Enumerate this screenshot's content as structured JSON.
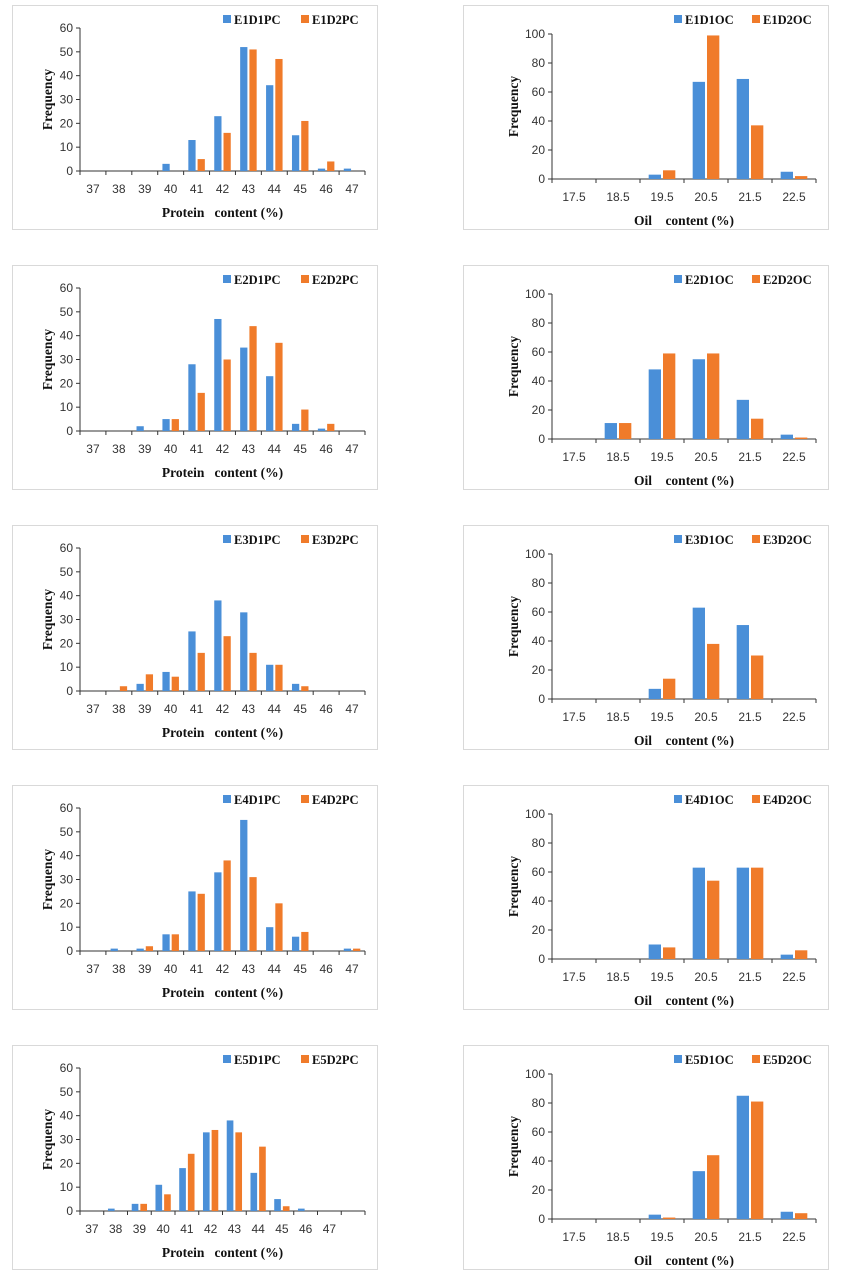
{
  "colors": {
    "d1": "#4a8fd8",
    "d2": "#f07b2a",
    "axis": "#333333"
  },
  "chart_data": [
    {
      "type": "bar",
      "ylabel": "Frequency",
      "xlabel": "Protein   content (%)",
      "ylim": [
        0,
        60
      ],
      "yticks": [
        0,
        10,
        20,
        30,
        40,
        50,
        60
      ],
      "legend": "top-right",
      "categories": [
        "37",
        "38",
        "39",
        "40",
        "41",
        "42",
        "43",
        "44",
        "45",
        "46",
        "47"
      ],
      "series": [
        {
          "name": "E1D1PC",
          "values": [
            0,
            0,
            0,
            3,
            13,
            23,
            52,
            36,
            15,
            1,
            1
          ]
        },
        {
          "name": "E1D2PC",
          "values": [
            0,
            0,
            0,
            0,
            5,
            16,
            51,
            47,
            21,
            4,
            0
          ]
        }
      ]
    },
    {
      "type": "bar",
      "ylabel": "Frequency",
      "xlabel": "Oil    content (%)",
      "ylim": [
        0,
        100
      ],
      "yticks": [
        0,
        20,
        40,
        60,
        80,
        100
      ],
      "legend": "top-right",
      "categories": [
        "17.5",
        "18.5",
        "19.5",
        "20.5",
        "21.5",
        "22.5"
      ],
      "series": [
        {
          "name": "E1D1OC",
          "values": [
            0,
            0,
            3,
            67,
            69,
            5
          ]
        },
        {
          "name": "E1D2OC",
          "values": [
            0,
            0,
            6,
            99,
            37,
            2
          ]
        }
      ]
    },
    {
      "type": "bar",
      "ylabel": "Frequency",
      "xlabel": "Protein   content (%)",
      "ylim": [
        0,
        60
      ],
      "yticks": [
        0,
        10,
        20,
        30,
        40,
        50,
        60
      ],
      "legend": "top-right",
      "categories": [
        "37",
        "38",
        "39",
        "40",
        "41",
        "42",
        "43",
        "44",
        "45",
        "46",
        "47"
      ],
      "series": [
        {
          "name": "E2D1PC",
          "values": [
            0,
            0,
            2,
            5,
            28,
            47,
            35,
            23,
            3,
            1,
            0
          ]
        },
        {
          "name": "E2D2PC",
          "values": [
            0,
            0,
            0,
            5,
            16,
            30,
            44,
            37,
            9,
            3,
            0
          ]
        }
      ]
    },
    {
      "type": "bar",
      "ylabel": "Frequency",
      "xlabel": "Oil    content (%)",
      "ylim": [
        0,
        100
      ],
      "yticks": [
        0,
        20,
        40,
        60,
        80,
        100
      ],
      "legend": "top-right",
      "categories": [
        "17.5",
        "18.5",
        "19.5",
        "20.5",
        "21.5",
        "22.5"
      ],
      "series": [
        {
          "name": "E2D1OC",
          "values": [
            0,
            11,
            48,
            55,
            27,
            3
          ]
        },
        {
          "name": "E2D2OC",
          "values": [
            0,
            11,
            59,
            59,
            14,
            1
          ]
        }
      ]
    },
    {
      "type": "bar",
      "ylabel": "Frequency",
      "xlabel": "Protein   content (%)",
      "ylim": [
        0,
        60
      ],
      "yticks": [
        0,
        10,
        20,
        30,
        40,
        50,
        60
      ],
      "legend": "top-right",
      "categories": [
        "37",
        "38",
        "39",
        "40",
        "41",
        "42",
        "43",
        "44",
        "45",
        "46",
        "47"
      ],
      "series": [
        {
          "name": "E3D1PC",
          "values": [
            0,
            0,
            3,
            8,
            25,
            38,
            33,
            11,
            3,
            0,
            0
          ]
        },
        {
          "name": "E3D2PC",
          "values": [
            0,
            2,
            7,
            6,
            16,
            23,
            16,
            11,
            2,
            0,
            0
          ]
        }
      ]
    },
    {
      "type": "bar",
      "ylabel": "Frequency",
      "xlabel": "Oil    content (%)",
      "ylim": [
        0,
        100
      ],
      "yticks": [
        0,
        20,
        40,
        60,
        80,
        100
      ],
      "legend": "top-right",
      "categories": [
        "17.5",
        "18.5",
        "19.5",
        "20.5",
        "21.5",
        "22.5"
      ],
      "series": [
        {
          "name": "E3D1OC",
          "values": [
            0,
            0,
            7,
            63,
            51,
            0
          ]
        },
        {
          "name": "E3D2OC",
          "values": [
            0,
            0,
            14,
            38,
            30,
            0
          ]
        }
      ]
    },
    {
      "type": "bar",
      "ylabel": "Frequency",
      "xlabel": "Protein   content (%)",
      "ylim": [
        0,
        60
      ],
      "yticks": [
        0,
        10,
        20,
        30,
        40,
        50,
        60
      ],
      "legend": "top-right",
      "categories": [
        "37",
        "38",
        "39",
        "40",
        "41",
        "42",
        "43",
        "44",
        "45",
        "46",
        "47"
      ],
      "series": [
        {
          "name": "E4D1PC",
          "values": [
            0,
            1,
            1,
            7,
            25,
            33,
            55,
            10,
            6,
            0,
            1
          ]
        },
        {
          "name": "E4D2PC",
          "values": [
            0,
            0,
            2,
            7,
            24,
            38,
            31,
            20,
            8,
            0,
            1
          ]
        }
      ]
    },
    {
      "type": "bar",
      "ylabel": "Frequency",
      "xlabel": "Oil    content (%)",
      "ylim": [
        0,
        100
      ],
      "yticks": [
        0,
        20,
        40,
        60,
        80,
        100
      ],
      "legend": "top-right",
      "categories": [
        "17.5",
        "18.5",
        "19.5",
        "20.5",
        "21.5",
        "22.5"
      ],
      "series": [
        {
          "name": "E4D1OC",
          "values": [
            0,
            0,
            10,
            63,
            63,
            3
          ]
        },
        {
          "name": "E4D2OC",
          "values": [
            0,
            0,
            8,
            54,
            63,
            6
          ]
        }
      ]
    },
    {
      "type": "bar",
      "ylabel": "Frequency",
      "xlabel": "Protein   content (%)",
      "ylim": [
        0,
        60
      ],
      "yticks": [
        0,
        10,
        20,
        30,
        40,
        50,
        60
      ],
      "legend": "top-right",
      "categories": [
        "37",
        "38",
        "39",
        "40",
        "41",
        "42",
        "43",
        "44",
        "45",
        "46",
        "47",
        ""
      ],
      "series": [
        {
          "name": "E5D1PC",
          "values": [
            0,
            1,
            3,
            11,
            18,
            33,
            38,
            16,
            5,
            1,
            0,
            0
          ]
        },
        {
          "name": "E5D2PC",
          "values": [
            0,
            0,
            3,
            7,
            24,
            34,
            33,
            27,
            2,
            0,
            0,
            0
          ]
        }
      ]
    },
    {
      "type": "bar",
      "ylabel": "Frequency",
      "xlabel": "Oil    content (%)",
      "ylim": [
        0,
        100
      ],
      "yticks": [
        0,
        20,
        40,
        60,
        80,
        100
      ],
      "legend": "top-right",
      "categories": [
        "17.5",
        "18.5",
        "19.5",
        "20.5",
        "21.5",
        "22.5"
      ],
      "series": [
        {
          "name": "E5D1OC",
          "values": [
            0,
            0,
            3,
            33,
            85,
            5
          ]
        },
        {
          "name": "E5D2OC",
          "values": [
            0,
            0,
            1,
            44,
            81,
            4
          ]
        }
      ]
    }
  ]
}
